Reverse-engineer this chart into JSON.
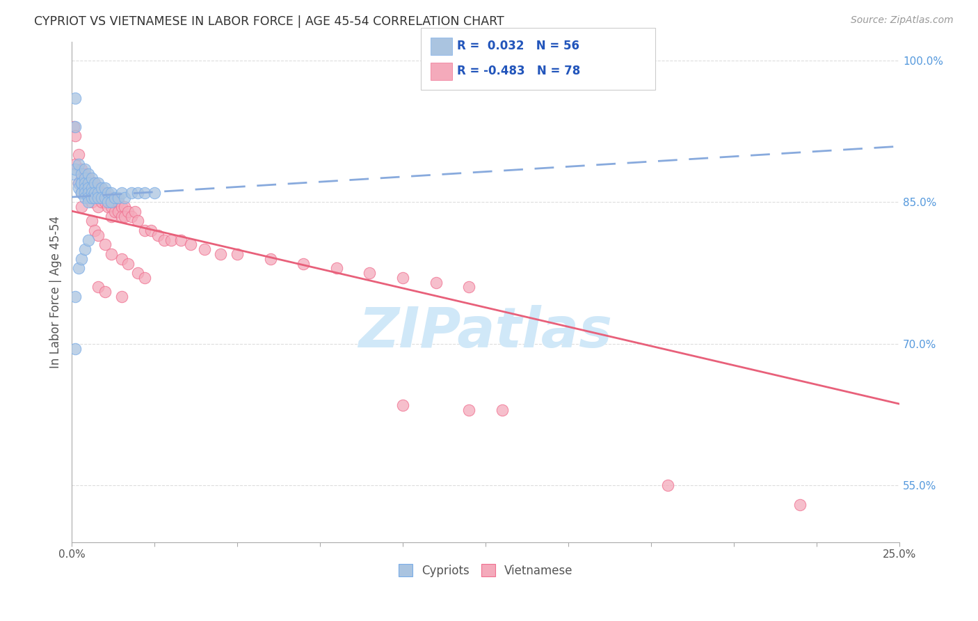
{
  "title": "CYPRIOT VS VIETNAMESE IN LABOR FORCE | AGE 45-54 CORRELATION CHART",
  "source": "Source: ZipAtlas.com",
  "yaxis_label": "In Labor Force | Age 45-54",
  "legend_cypriot": "Cypriots",
  "legend_vietnamese": "Vietnamese",
  "R_cypriot": 0.032,
  "N_cypriot": 56,
  "R_vietnamese": -0.483,
  "N_vietnamese": 78,
  "cypriot_color": "#aac4e0",
  "cypriot_edge_color": "#7aade8",
  "vietnamese_color": "#f4aabb",
  "vietnamese_edge_color": "#f07090",
  "cypriot_line_color": "#88aadd",
  "vietnamese_line_color": "#e8607a",
  "background_color": "#ffffff",
  "watermark_color": "#d0e8f8",
  "xmin": 0.0,
  "xmax": 0.25,
  "ymin": 0.49,
  "ymax": 1.02,
  "ytick_positions": [
    0.55,
    0.7,
    0.85,
    1.0
  ],
  "ytick_labels": [
    "55.0%",
    "70.0%",
    "85.0%",
    "100.0%"
  ],
  "xtick_positions": [
    0.0,
    0.025,
    0.05,
    0.075,
    0.1,
    0.125,
    0.15,
    0.175,
    0.2,
    0.225,
    0.25
  ],
  "cypriot_x": [
    0.0005,
    0.001,
    0.001,
    0.001,
    0.002,
    0.002,
    0.002,
    0.003,
    0.003,
    0.003,
    0.003,
    0.003,
    0.004,
    0.004,
    0.004,
    0.004,
    0.004,
    0.004,
    0.005,
    0.005,
    0.005,
    0.005,
    0.005,
    0.005,
    0.006,
    0.006,
    0.006,
    0.006,
    0.007,
    0.007,
    0.007,
    0.008,
    0.008,
    0.008,
    0.009,
    0.009,
    0.01,
    0.01,
    0.011,
    0.011,
    0.012,
    0.012,
    0.013,
    0.014,
    0.015,
    0.016,
    0.018,
    0.02,
    0.022,
    0.025,
    0.001,
    0.001,
    0.002,
    0.003,
    0.004,
    0.005
  ],
  "cypriot_y": [
    0.88,
    0.96,
    0.93,
    0.885,
    0.89,
    0.87,
    0.865,
    0.88,
    0.87,
    0.86,
    0.87,
    0.86,
    0.885,
    0.875,
    0.87,
    0.865,
    0.86,
    0.855,
    0.88,
    0.87,
    0.865,
    0.86,
    0.855,
    0.85,
    0.875,
    0.865,
    0.86,
    0.855,
    0.87,
    0.86,
    0.855,
    0.87,
    0.86,
    0.855,
    0.865,
    0.855,
    0.865,
    0.855,
    0.86,
    0.85,
    0.86,
    0.85,
    0.855,
    0.855,
    0.86,
    0.855,
    0.86,
    0.86,
    0.86,
    0.86,
    0.695,
    0.75,
    0.78,
    0.79,
    0.8,
    0.81
  ],
  "vietnamese_x": [
    0.0005,
    0.001,
    0.001,
    0.002,
    0.002,
    0.003,
    0.003,
    0.003,
    0.004,
    0.004,
    0.004,
    0.005,
    0.005,
    0.005,
    0.006,
    0.006,
    0.006,
    0.007,
    0.007,
    0.008,
    0.008,
    0.008,
    0.009,
    0.009,
    0.01,
    0.01,
    0.011,
    0.011,
    0.012,
    0.012,
    0.012,
    0.013,
    0.013,
    0.014,
    0.014,
    0.015,
    0.015,
    0.016,
    0.016,
    0.017,
    0.018,
    0.019,
    0.02,
    0.022,
    0.024,
    0.026,
    0.028,
    0.03,
    0.033,
    0.036,
    0.04,
    0.045,
    0.05,
    0.06,
    0.07,
    0.08,
    0.09,
    0.1,
    0.11,
    0.12,
    0.003,
    0.006,
    0.007,
    0.008,
    0.01,
    0.012,
    0.015,
    0.017,
    0.02,
    0.022,
    0.008,
    0.01,
    0.015,
    0.1,
    0.12,
    0.13,
    0.18,
    0.22
  ],
  "vietnamese_y": [
    0.93,
    0.92,
    0.89,
    0.9,
    0.87,
    0.885,
    0.875,
    0.86,
    0.88,
    0.87,
    0.86,
    0.875,
    0.865,
    0.855,
    0.87,
    0.86,
    0.85,
    0.87,
    0.86,
    0.865,
    0.855,
    0.845,
    0.86,
    0.85,
    0.86,
    0.85,
    0.855,
    0.845,
    0.855,
    0.845,
    0.835,
    0.85,
    0.84,
    0.85,
    0.84,
    0.845,
    0.835,
    0.845,
    0.835,
    0.84,
    0.835,
    0.84,
    0.83,
    0.82,
    0.82,
    0.815,
    0.81,
    0.81,
    0.81,
    0.805,
    0.8,
    0.795,
    0.795,
    0.79,
    0.785,
    0.78,
    0.775,
    0.77,
    0.765,
    0.76,
    0.845,
    0.83,
    0.82,
    0.815,
    0.805,
    0.795,
    0.79,
    0.785,
    0.775,
    0.77,
    0.76,
    0.755,
    0.75,
    0.635,
    0.63,
    0.63,
    0.55,
    0.53
  ]
}
